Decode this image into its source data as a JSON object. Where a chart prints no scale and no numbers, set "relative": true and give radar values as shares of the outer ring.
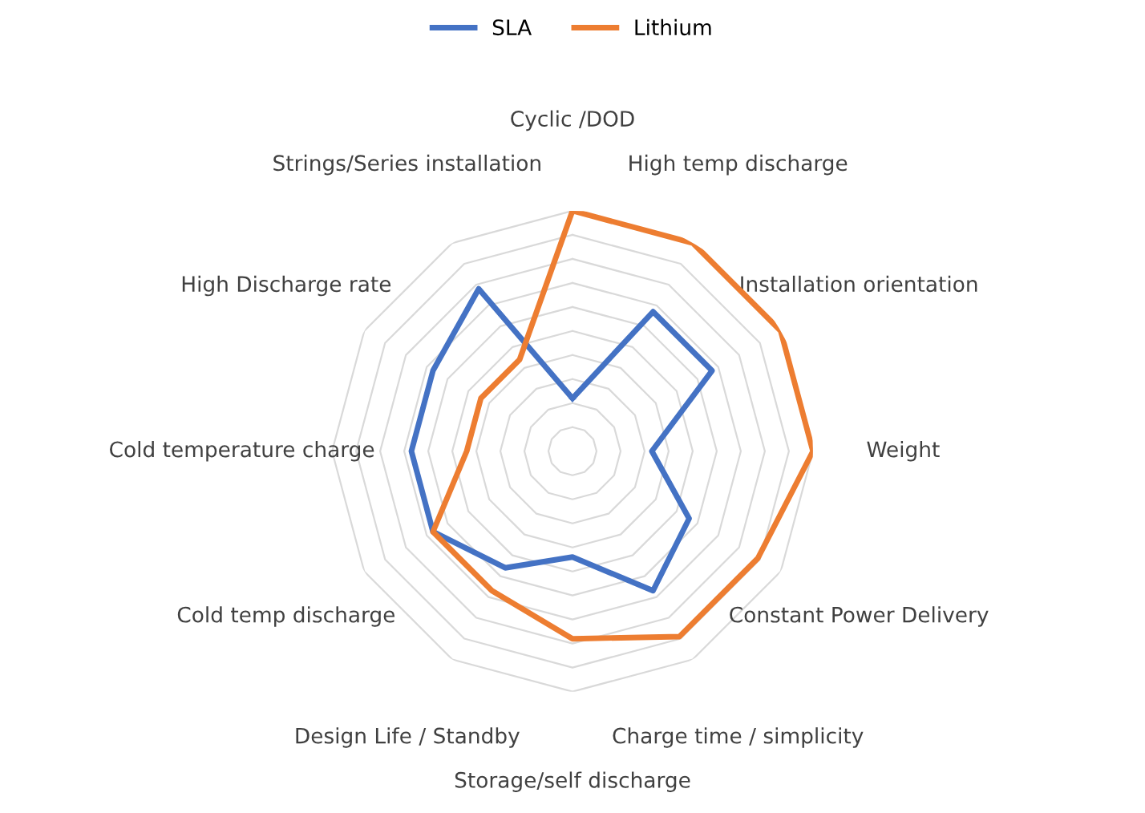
{
  "chart_data": {
    "type": "radar",
    "relative": true,
    "grid": true,
    "legend": "top",
    "categories": [
      "Cyclic /DOD",
      "High temp discharge",
      "Installation orientation",
      "Weight",
      "Constant Power Delivery",
      "Charge time / simplicity",
      "Storage/self discharge",
      "Design Life / Standby",
      "Cold temp discharge",
      "Cold temperature charge",
      "High Discharge rate",
      "Strings/Series installation"
    ],
    "series": [
      {
        "name": "SLA",
        "color": "#4472c4",
        "values": [
          0.22,
          0.67,
          0.67,
          0.33,
          0.56,
          0.67,
          0.44,
          0.56,
          0.67,
          0.67,
          0.67,
          0.78
        ]
      },
      {
        "name": "Lithium",
        "color": "#ed7d31",
        "values": [
          1,
          1,
          1,
          1,
          0.89,
          0.89,
          0.78,
          0.67,
          0.67,
          0.44,
          0.44,
          0.44
        ]
      }
    ]
  }
}
